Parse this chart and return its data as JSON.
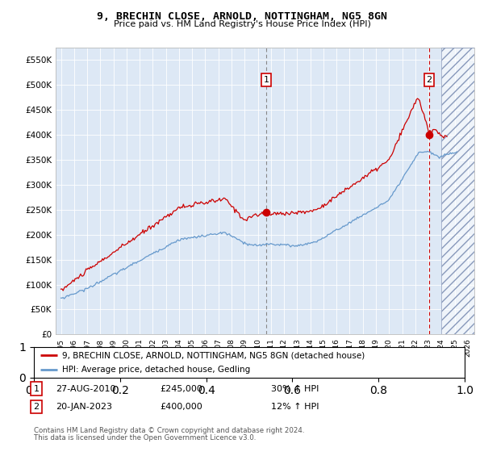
{
  "title": "9, BRECHIN CLOSE, ARNOLD, NOTTINGHAM, NG5 8GN",
  "subtitle": "Price paid vs. HM Land Registry's House Price Index (HPI)",
  "ylim": [
    0,
    575000
  ],
  "yticks": [
    0,
    50000,
    100000,
    150000,
    200000,
    250000,
    300000,
    350000,
    400000,
    450000,
    500000,
    550000
  ],
  "ytick_labels": [
    "£0",
    "£50K",
    "£100K",
    "£150K",
    "£200K",
    "£250K",
    "£300K",
    "£350K",
    "£400K",
    "£450K",
    "£500K",
    "£550K"
  ],
  "xlim_start": 1994.6,
  "xlim_end": 2026.5,
  "xticks": [
    1995,
    1996,
    1997,
    1998,
    1999,
    2000,
    2001,
    2002,
    2003,
    2004,
    2005,
    2006,
    2007,
    2008,
    2009,
    2010,
    2011,
    2012,
    2013,
    2014,
    2015,
    2016,
    2017,
    2018,
    2019,
    2020,
    2021,
    2022,
    2023,
    2024,
    2025,
    2026
  ],
  "background_color": "#dde8f5",
  "hatch_region_start": 2024.0,
  "hatch_region_end": 2026.5,
  "sale1_x": 2010.65,
  "sale1_y": 245000,
  "sale2_x": 2023.05,
  "sale2_y": 400000,
  "sale1_date": "27-AUG-2010",
  "sale1_price": "£245,000",
  "sale1_hpi": "30% ↑ HPI",
  "sale2_date": "20-JAN-2023",
  "sale2_price": "£400,000",
  "sale2_hpi": "12% ↑ HPI",
  "red_line_color": "#cc0000",
  "blue_line_color": "#6699cc",
  "legend_line1": "9, BRECHIN CLOSE, ARNOLD, NOTTINGHAM, NG5 8GN (detached house)",
  "legend_line2": "HPI: Average price, detached house, Gedling",
  "footer1": "Contains HM Land Registry data © Crown copyright and database right 2024.",
  "footer2": "This data is licensed under the Open Government Licence v3.0."
}
